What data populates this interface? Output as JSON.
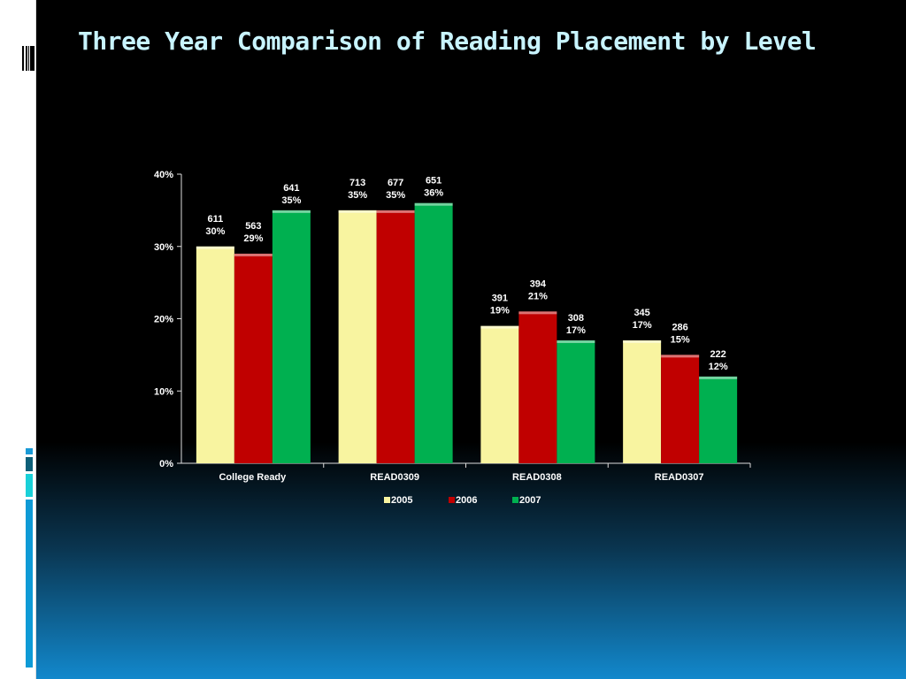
{
  "title": "Three Year Comparison of Reading Placement by Level",
  "chart_data": {
    "type": "bar",
    "title": "",
    "xlabel": "",
    "ylabel": "",
    "ylim": [
      0,
      40
    ],
    "yticks": [
      "0%",
      "10%",
      "20%",
      "30%",
      "40%"
    ],
    "yticks_values": [
      0,
      10,
      20,
      30,
      40
    ],
    "categories": [
      "College Ready",
      "READ0309",
      "READ0308",
      "READ0307"
    ],
    "legend_position": "bottom",
    "grid": false,
    "series": [
      {
        "name": "2005",
        "color": "#f8f4a0",
        "values": [
          30,
          35,
          19,
          17
        ],
        "counts": [
          "611",
          "713",
          "391",
          "345"
        ],
        "pct_labels": [
          "30%",
          "35%",
          "19%",
          "17%"
        ]
      },
      {
        "name": "2006",
        "color": "#c00000",
        "values": [
          29,
          35,
          21,
          15
        ],
        "counts": [
          "563",
          "677",
          "394",
          "286"
        ],
        "pct_labels": [
          "29%",
          "35%",
          "21%",
          "15%"
        ]
      },
      {
        "name": "2007",
        "color": "#00b050",
        "values": [
          35,
          36,
          17,
          12
        ],
        "counts": [
          "641",
          "651",
          "308",
          "222"
        ],
        "pct_labels": [
          "35%",
          "36%",
          "17%",
          "12%"
        ]
      }
    ]
  }
}
